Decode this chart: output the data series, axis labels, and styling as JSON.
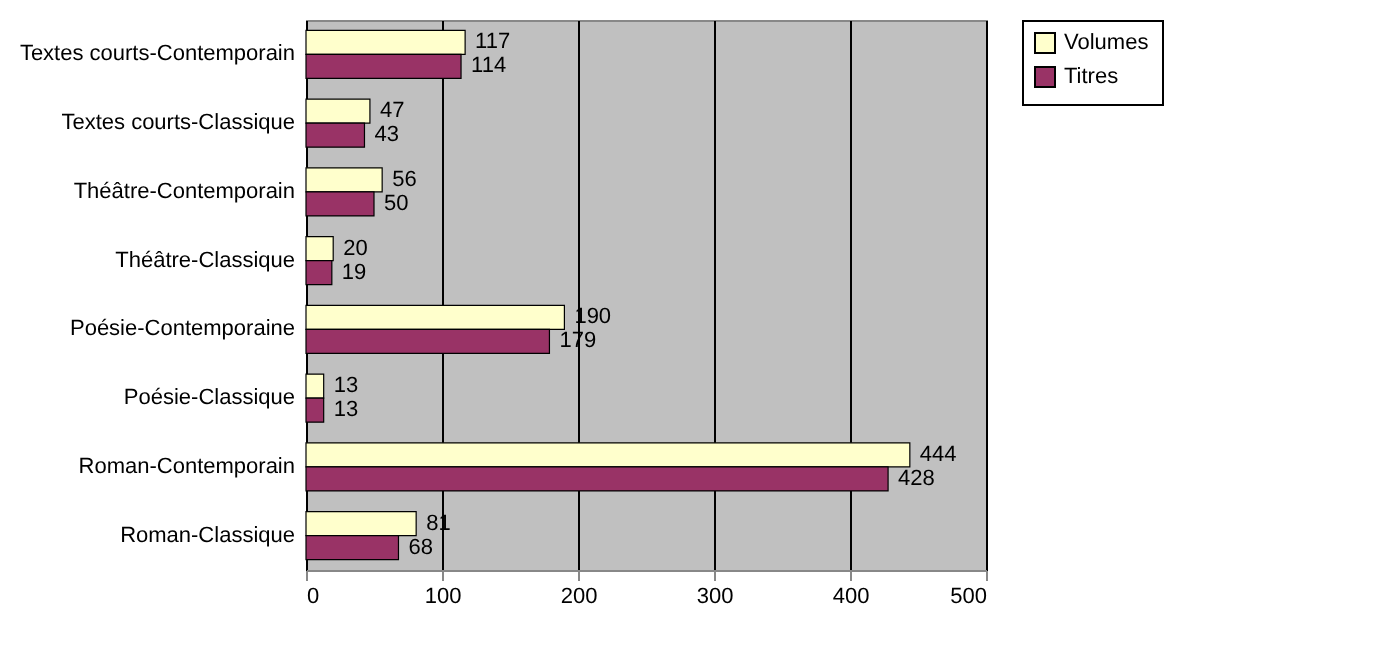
{
  "chart_data": {
    "type": "bar",
    "orientation": "horizontal",
    "categories": [
      "Textes courts-Contemporain",
      "Textes courts-Classique",
      "Théâtre-Contemporain",
      "Théâtre-Classique",
      "Poésie-Contemporaine",
      "Poésie-Classique",
      "Roman-Contemporain",
      "Roman-Classique"
    ],
    "series": [
      {
        "name": "Volumes",
        "color": "#ffffcc",
        "values": [
          117,
          47,
          56,
          20,
          190,
          13,
          444,
          81
        ]
      },
      {
        "name": "Titres",
        "color": "#993366",
        "values": [
          114,
          43,
          50,
          19,
          179,
          13,
          428,
          68
        ]
      }
    ],
    "xlim": [
      0,
      500
    ],
    "xticks": [
      0,
      100,
      200,
      300,
      400,
      500
    ],
    "grid": "x",
    "legend": "right",
    "data_labels": true
  }
}
